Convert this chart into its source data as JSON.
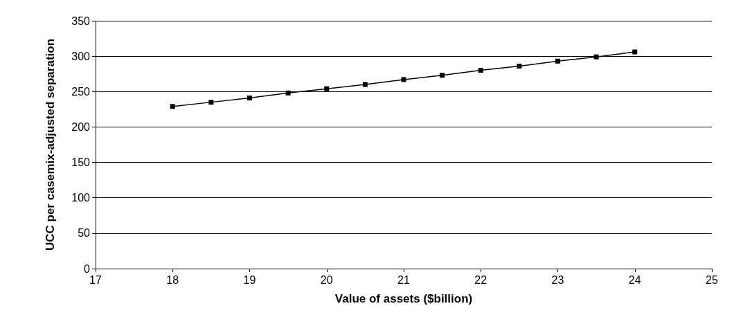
{
  "chart_data": {
    "type": "line",
    "xlabel": "Value of assets ($billion)",
    "ylabel": "UCC per casemix-adjusted separation",
    "x": [
      18,
      18.5,
      19,
      19.5,
      20,
      20.5,
      21,
      21.5,
      22,
      22.5,
      23,
      23.5,
      24
    ],
    "series": [
      {
        "color": "#000000",
        "values": [
          229,
          235,
          241,
          248,
          254,
          260,
          267,
          273,
          280,
          286,
          293,
          299,
          306
        ]
      }
    ],
    "xlim": [
      17,
      25
    ],
    "xticks": [
      17,
      18,
      19,
      20,
      21,
      22,
      23,
      24,
      25
    ],
    "ylim": [
      0,
      350
    ],
    "yticks": [
      0,
      50,
      100,
      150,
      200,
      250,
      300,
      350
    ],
    "grid": "y",
    "marker": "square",
    "line_style": "solid"
  }
}
